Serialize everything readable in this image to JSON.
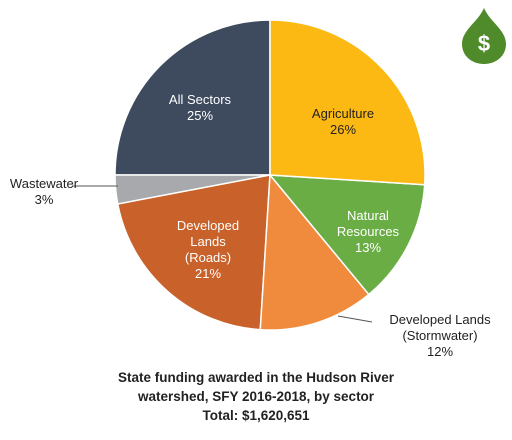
{
  "chart_data": {
    "type": "pie",
    "title": "State funding awarded in the Hudson River watershed, SFY 2016-2018, by sector",
    "subtitle": "Total: $1,620,651",
    "icon_text": "$",
    "categories": [
      "Agriculture",
      "Natural Resources",
      "Developed Lands (Stormwater)",
      "Developed Lands (Roads)",
      "Wastewater",
      "All Sectors"
    ],
    "values": [
      26,
      13,
      12,
      21,
      3,
      25
    ],
    "value_labels": [
      "26%",
      "13%",
      "12%",
      "21%",
      "3%",
      "25%"
    ],
    "colors": [
      "#fdb913",
      "#6aad45",
      "#f08a3c",
      "#c8612a",
      "#a7a9ac",
      "#3e4a5e"
    ]
  }
}
